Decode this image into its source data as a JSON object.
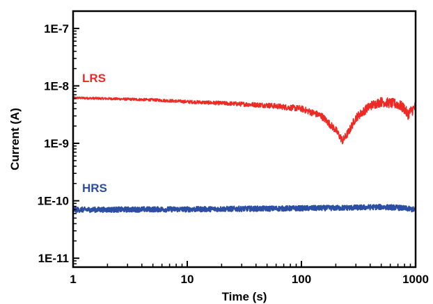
{
  "chart_data": {
    "type": "line",
    "xlabel": "Time (s)",
    "ylabel": "Current (A)",
    "x_scale": "log",
    "y_scale": "log",
    "xlim": [
      1,
      1000
    ],
    "ylim": [
      7e-12,
      2e-07
    ],
    "x_ticks": [
      {
        "value": 1,
        "label": "1"
      },
      {
        "value": 10,
        "label": "10"
      },
      {
        "value": 100,
        "label": "100"
      },
      {
        "value": 1000,
        "label": "1000"
      }
    ],
    "y_ticks": [
      {
        "value": 1e-07,
        "label": "1E-7"
      },
      {
        "value": 1e-08,
        "label": "1E-8"
      },
      {
        "value": 1e-09,
        "label": "1E-9"
      },
      {
        "value": 1e-10,
        "label": "1E-10"
      },
      {
        "value": 1e-11,
        "label": "1E-11"
      }
    ],
    "grid": false,
    "legend": "none",
    "series": [
      {
        "name": "LRS",
        "color": "#ee2a25",
        "x": [
          1,
          2,
          5,
          10,
          20,
          50,
          100,
          150,
          200,
          230,
          260,
          300,
          400,
          500,
          600,
          700,
          800,
          850,
          1000
        ],
        "y": [
          6.2e-09,
          6e-09,
          5.7e-09,
          5.3e-09,
          5e-09,
          4.6e-09,
          4e-09,
          3e-09,
          1.7e-09,
          1.1e-09,
          1.6e-09,
          2.8e-09,
          4.5e-09,
          5.3e-09,
          5e-09,
          4.8e-09,
          4e-09,
          3.2e-09,
          4.3e-09
        ]
      },
      {
        "name": "HRS",
        "color": "#2c4ea3",
        "x": [
          1,
          2,
          5,
          10,
          20,
          50,
          100,
          200,
          300,
          500,
          700,
          1000
        ],
        "y": [
          7e-11,
          7e-11,
          7.1e-11,
          7.1e-11,
          7.2e-11,
          7.3e-11,
          7.4e-11,
          7.5e-11,
          7.6e-11,
          7.8e-11,
          7.6e-11,
          7e-11
        ]
      }
    ]
  }
}
